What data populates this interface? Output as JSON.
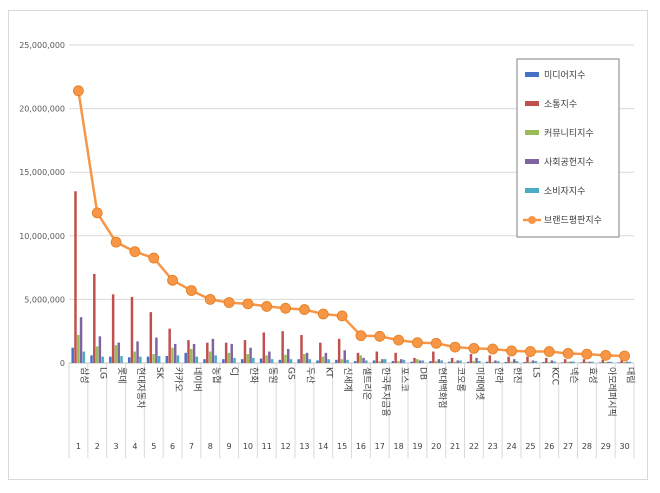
{
  "chart_data": {
    "type": "bar",
    "title": "",
    "xlabel": "",
    "ylabel": "",
    "ylim": [
      0,
      25000000
    ],
    "yticks": [
      "0",
      "5,000,000",
      "10,000,000",
      "15,000,000",
      "20,000,000",
      "25,000,000"
    ],
    "ytick_values": [
      0,
      5000000,
      10000000,
      15000000,
      20000000,
      25000000
    ],
    "grid": true,
    "legend_position": "right",
    "ranks": [
      "1",
      "2",
      "3",
      "4",
      "5",
      "6",
      "7",
      "8",
      "9",
      "10",
      "11",
      "12",
      "13",
      "14",
      "15",
      "16",
      "17",
      "18",
      "19",
      "20",
      "21",
      "22",
      "23",
      "24",
      "25",
      "26",
      "27",
      "28",
      "29",
      "30"
    ],
    "categories": [
      "삼성",
      "LG",
      "롯데",
      "현대자동차",
      "SK",
      "카카오",
      "네이버",
      "농협",
      "CJ",
      "한화",
      "동원",
      "GS",
      "두산",
      "KT",
      "신세계",
      "셀트리온",
      "한국투자금융",
      "포스코",
      "DB",
      "현대백화점",
      "코오롱",
      "미래에셋",
      "한라",
      "한진",
      "LS",
      "KCC",
      "넥슨",
      "효성",
      "아모레퍼시픽",
      "대림"
    ],
    "series": [
      {
        "name": "미디어지수",
        "kind": "bar",
        "color": "#4472c4",
        "values": [
          1200000,
          600000,
          500000,
          450000,
          500000,
          550000,
          800000,
          300000,
          300000,
          300000,
          350000,
          250000,
          300000,
          200000,
          250000,
          150000,
          200000,
          150000,
          100000,
          150000,
          100000,
          100000,
          100000,
          80000,
          80000,
          80000,
          50000,
          50000,
          50000,
          50000
        ]
      },
      {
        "name": "소통지수",
        "kind": "bar",
        "color": "#c0504d",
        "values": [
          13500000,
          7000000,
          5400000,
          5200000,
          4000000,
          2700000,
          1800000,
          1600000,
          1600000,
          1800000,
          2400000,
          2500000,
          2200000,
          1600000,
          1900000,
          800000,
          900000,
          800000,
          400000,
          900000,
          400000,
          700000,
          600000,
          500000,
          500000,
          400000,
          300000,
          300000,
          250000,
          200000
        ]
      },
      {
        "name": "커뮤니티지수",
        "kind": "bar",
        "color": "#9bbb59",
        "values": [
          2200000,
          1300000,
          1400000,
          900000,
          700000,
          1200000,
          1100000,
          900000,
          800000,
          700000,
          600000,
          650000,
          700000,
          500000,
          300000,
          600000,
          150000,
          150000,
          300000,
          150000,
          100000,
          150000,
          100000,
          100000,
          100000,
          80000,
          100000,
          100000,
          80000,
          80000
        ]
      },
      {
        "name": "사회공헌지수",
        "kind": "bar",
        "color": "#8064a2",
        "values": [
          3600000,
          2100000,
          1600000,
          1700000,
          2000000,
          1500000,
          1500000,
          1900000,
          1500000,
          1200000,
          900000,
          1100000,
          800000,
          800000,
          1000000,
          400000,
          300000,
          300000,
          200000,
          300000,
          200000,
          400000,
          200000,
          300000,
          200000,
          200000,
          100000,
          100000,
          100000,
          100000
        ]
      },
      {
        "name": "소비자지수",
        "kind": "bar",
        "color": "#4bacc6",
        "values": [
          900000,
          500000,
          550000,
          500000,
          550000,
          600000,
          500000,
          600000,
          400000,
          400000,
          300000,
          300000,
          300000,
          300000,
          250000,
          200000,
          300000,
          250000,
          200000,
          200000,
          200000,
          150000,
          150000,
          150000,
          150000,
          120000,
          120000,
          100000,
          100000,
          100000
        ]
      },
      {
        "name": "브랜드평판지수",
        "kind": "line",
        "color": "#f79646",
        "values": [
          21400000,
          11800000,
          9500000,
          8750000,
          8250000,
          6500000,
          5700000,
          5000000,
          4750000,
          4650000,
          4450000,
          4300000,
          4200000,
          3850000,
          3700000,
          2150000,
          2100000,
          1800000,
          1600000,
          1550000,
          1250000,
          1150000,
          1100000,
          950000,
          900000,
          900000,
          750000,
          700000,
          600000,
          550000
        ]
      }
    ]
  }
}
